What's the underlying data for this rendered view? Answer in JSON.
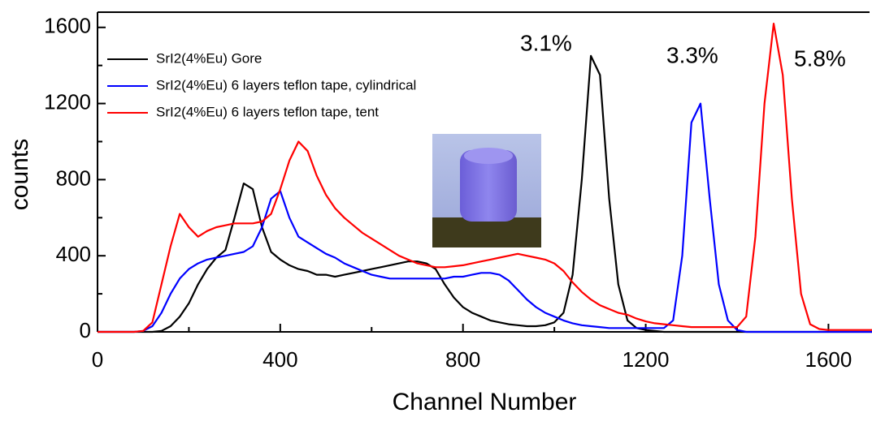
{
  "chart_data": {
    "type": "line",
    "x_label": "Channel Number",
    "y_label": "counts",
    "xlim": [
      0,
      1690
    ],
    "ylim": [
      0,
      1680
    ],
    "xticks": [
      0,
      400,
      800,
      1200,
      1600
    ],
    "yticks": [
      0,
      400,
      800,
      1200,
      1600
    ],
    "xminorticks": [
      200,
      600,
      1000,
      1400
    ],
    "yminorticks": [
      200,
      600,
      1000,
      1400
    ],
    "x": [
      0,
      20,
      40,
      60,
      80,
      100,
      120,
      140,
      160,
      180,
      200,
      220,
      240,
      260,
      280,
      300,
      320,
      340,
      360,
      380,
      400,
      420,
      440,
      460,
      480,
      500,
      520,
      540,
      560,
      580,
      600,
      620,
      640,
      660,
      680,
      700,
      720,
      740,
      760,
      780,
      800,
      820,
      840,
      860,
      880,
      900,
      920,
      940,
      960,
      980,
      1000,
      1020,
      1040,
      1060,
      1080,
      1100,
      1120,
      1140,
      1160,
      1180,
      1200,
      1220,
      1240,
      1260,
      1280,
      1300,
      1320,
      1340,
      1360,
      1380,
      1400,
      1420,
      1440,
      1460,
      1480,
      1500,
      1520,
      1540,
      1560,
      1580,
      1600,
      1620,
      1640,
      1660,
      1680,
      1700
    ],
    "series": [
      {
        "name": "SrI2(4%Eu) Gore",
        "color": "#000000",
        "values": [
          0,
          0,
          0,
          0,
          0,
          0,
          0,
          5,
          30,
          80,
          150,
          250,
          330,
          390,
          430,
          600,
          780,
          750,
          550,
          420,
          380,
          350,
          330,
          320,
          300,
          300,
          290,
          300,
          310,
          320,
          330,
          340,
          350,
          360,
          370,
          370,
          360,
          330,
          250,
          180,
          130,
          100,
          80,
          60,
          50,
          40,
          35,
          30,
          30,
          35,
          50,
          100,
          300,
          800,
          1450,
          1350,
          700,
          250,
          60,
          20,
          10,
          5,
          0,
          0,
          0,
          0,
          0,
          0,
          0,
          0,
          0,
          0,
          0,
          0,
          0,
          0,
          0,
          0,
          0,
          0,
          0,
          0,
          0,
          0,
          0,
          0
        ]
      },
      {
        "name": "SrI2(4%Eu) 6 layers teflon tape, cylindrical",
        "color": "#0000ff",
        "values": [
          0,
          0,
          0,
          0,
          0,
          5,
          30,
          100,
          200,
          280,
          330,
          360,
          380,
          390,
          400,
          410,
          420,
          450,
          550,
          700,
          740,
          600,
          500,
          470,
          440,
          410,
          390,
          360,
          340,
          320,
          300,
          290,
          280,
          280,
          280,
          280,
          280,
          280,
          280,
          290,
          290,
          300,
          310,
          310,
          300,
          270,
          220,
          170,
          130,
          100,
          80,
          60,
          45,
          35,
          30,
          25,
          20,
          20,
          20,
          20,
          20,
          20,
          20,
          60,
          400,
          1100,
          1200,
          700,
          250,
          60,
          10,
          0,
          0,
          0,
          0,
          0,
          0,
          0,
          0,
          0,
          0,
          0,
          0,
          0,
          0,
          0
        ]
      },
      {
        "name": "SrI2(4%Eu) 6 layers teflon tape, tent",
        "color": "#ff0000",
        "values": [
          0,
          0,
          0,
          0,
          0,
          5,
          50,
          250,
          450,
          620,
          550,
          500,
          530,
          550,
          560,
          570,
          570,
          570,
          580,
          620,
          750,
          900,
          1000,
          950,
          820,
          720,
          650,
          600,
          560,
          520,
          490,
          460,
          430,
          400,
          380,
          360,
          350,
          340,
          340,
          345,
          350,
          360,
          370,
          380,
          390,
          400,
          410,
          400,
          390,
          380,
          360,
          320,
          260,
          210,
          170,
          140,
          120,
          100,
          90,
          70,
          55,
          45,
          40,
          35,
          30,
          25,
          25,
          25,
          25,
          25,
          25,
          80,
          500,
          1200,
          1620,
          1350,
          700,
          200,
          40,
          15,
          10,
          10,
          10,
          10,
          10,
          10
        ]
      }
    ],
    "annotations": [
      {
        "text": "3.1%",
        "color": "#000000"
      },
      {
        "text": "3.3%",
        "color": "#0000ff"
      },
      {
        "text": "5.8%",
        "color": "#ff0000"
      }
    ]
  }
}
